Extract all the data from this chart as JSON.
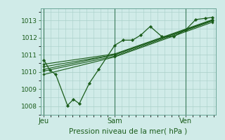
{
  "bg_color": "#d0ebe8",
  "grid_color": "#a8cfc8",
  "line_color": "#1a5c1a",
  "marker_color": "#1a5c1a",
  "xlabel": "Pression niveau de la mer( hPa )",
  "ylim": [
    1007.5,
    1013.7
  ],
  "yticks": [
    1008,
    1009,
    1010,
    1011,
    1012,
    1013
  ],
  "xtick_labels": [
    "Jeu",
    "Sam",
    "Ven"
  ],
  "xtick_positions": [
    0.0,
    0.42,
    0.84
  ],
  "vline_positions": [
    0.0,
    0.42,
    0.84
  ],
  "series": [
    {
      "x": [
        0.0,
        0.04,
        0.07,
        0.14,
        0.17,
        0.21,
        0.27,
        0.32,
        0.42,
        0.46,
        0.5,
        0.55,
        0.6,
        0.65,
        0.72,
        0.78,
        0.84,
        0.9,
        0.96,
        1.0
      ],
      "y": [
        1010.7,
        1010.1,
        1009.85,
        1008.05,
        1008.45,
        1008.2,
        1009.35,
        1010.15,
        1011.55,
        1011.85,
        1011.85,
        1012.15,
        1012.65,
        1012.05,
        1012.05,
        1012.45,
        1013.05,
        1013.12,
        1013.18,
        1013.2
      ],
      "lw": 1.0
    },
    {
      "x": [
        0.0,
        0.42,
        0.84,
        1.0
      ],
      "y": [
        1010.3,
        1011.0,
        1013.0,
        1013.1
      ],
      "lw": 0.9
    },
    {
      "x": [
        0.0,
        0.42,
        0.84,
        1.0
      ],
      "y": [
        1010.0,
        1010.95,
        1012.95,
        1013.05
      ],
      "lw": 0.9
    },
    {
      "x": [
        0.0,
        0.42,
        0.84,
        1.0
      ],
      "y": [
        1009.8,
        1010.9,
        1012.85,
        1013.0
      ],
      "lw": 0.9
    },
    {
      "x": [
        0.0,
        0.42,
        0.84,
        1.0
      ],
      "y": [
        1010.15,
        1011.0,
        1012.98,
        1013.08
      ],
      "lw": 0.9
    },
    {
      "x": [
        0.0,
        0.42,
        0.84,
        1.0
      ],
      "y": [
        1010.45,
        1011.05,
        1013.02,
        1013.12
      ],
      "lw": 0.9
    }
  ],
  "detailed_series": [
    {
      "x": [
        0.42,
        0.5,
        0.55,
        0.6,
        0.65,
        0.72,
        0.78,
        0.84,
        0.9,
        0.96,
        1.0
      ],
      "y": [
        1011.55,
        1011.85,
        1012.15,
        1012.65,
        1012.05,
        1012.05,
        1012.45,
        1013.05,
        1013.12,
        1013.18,
        1013.2
      ]
    }
  ]
}
